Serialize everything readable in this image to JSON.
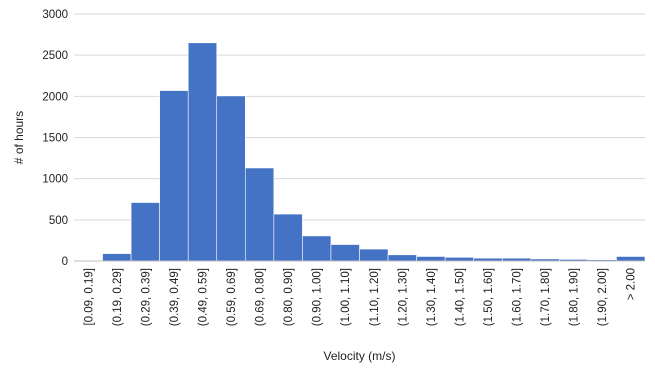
{
  "chart_data": {
    "type": "bar",
    "title": "",
    "xlabel": "Velocity (m/s)",
    "ylabel": "# of hours",
    "ylim": [
      0,
      3000
    ],
    "yticks": [
      0,
      500,
      1000,
      1500,
      2000,
      2500,
      3000
    ],
    "grid": true,
    "bar_color": "#4472c4",
    "categories": [
      "[0.09, 0.19]",
      "(0.19, 0.29]",
      "(0.29, 0.39]",
      "(0.39, 0.49]",
      "(0.49, 0.59]",
      "(0.59, 0.69]",
      "(0.69, 0.80]",
      "(0.80, 0.90]",
      "(0.90, 1.00]",
      "(1.00, 1.10]",
      "(1.10, 1.20]",
      "(1.20, 1.30]",
      "(1.30, 1.40]",
      "(1.40, 1.50]",
      "(1.50, 1.60]",
      "(1.60, 1.70]",
      "(1.70, 1.80]",
      "(1.80, 1.90]",
      "(1.90, 2.00]",
      "> 2.00"
    ],
    "values": [
      5,
      90,
      710,
      2070,
      2650,
      2005,
      1130,
      570,
      305,
      200,
      145,
      75,
      55,
      45,
      35,
      35,
      25,
      20,
      15,
      55
    ]
  }
}
